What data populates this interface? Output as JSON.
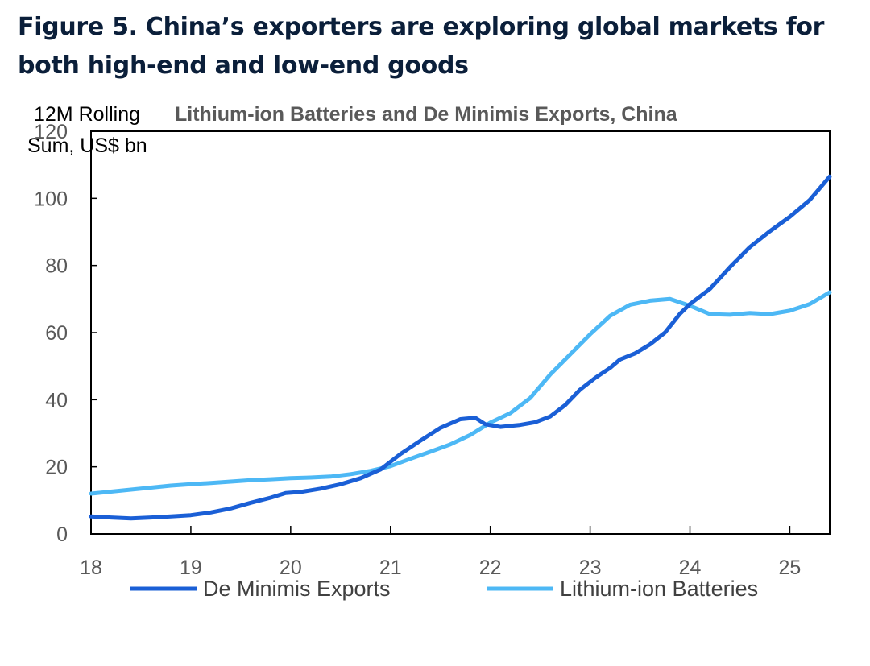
{
  "figure": {
    "title_line1": "Figure 5. China’s exporters are exploring global markets for",
    "title_line2": "both high-end and low-end goods"
  },
  "chart_data": {
    "type": "line",
    "title": "Lithium-ion Batteries and De Minimis Exports, China",
    "ylabel_line1": "12M Rolling",
    "ylabel_line2": "Sum, US$ bn",
    "xlabel": "",
    "xlim": [
      2018,
      2025.4
    ],
    "ylim": [
      0,
      120
    ],
    "x_ticks": [
      {
        "value": 2018,
        "label": "18"
      },
      {
        "value": 2019,
        "label": "19"
      },
      {
        "value": 2020,
        "label": "20"
      },
      {
        "value": 2021,
        "label": "21"
      },
      {
        "value": 2022,
        "label": "22"
      },
      {
        "value": 2023,
        "label": "23"
      },
      {
        "value": 2024,
        "label": "24"
      },
      {
        "value": 2025,
        "label": "25"
      }
    ],
    "y_ticks": [
      {
        "value": 0,
        "label": "0"
      },
      {
        "value": 20,
        "label": "20"
      },
      {
        "value": 40,
        "label": "40"
      },
      {
        "value": 60,
        "label": "60"
      },
      {
        "value": 80,
        "label": "80"
      },
      {
        "value": 100,
        "label": "100"
      },
      {
        "value": 120,
        "label": "120"
      }
    ],
    "grid": false,
    "legend_position": "bottom",
    "series": [
      {
        "name": "De Minimis Exports",
        "color": "#1a5fd6",
        "points": [
          [
            2018.0,
            5.2
          ],
          [
            2018.2,
            4.9
          ],
          [
            2018.4,
            4.6
          ],
          [
            2018.6,
            4.9
          ],
          [
            2018.8,
            5.2
          ],
          [
            2019.0,
            5.6
          ],
          [
            2019.2,
            6.4
          ],
          [
            2019.4,
            7.6
          ],
          [
            2019.6,
            9.3
          ],
          [
            2019.8,
            10.8
          ],
          [
            2019.95,
            12.2
          ],
          [
            2020.1,
            12.5
          ],
          [
            2020.3,
            13.5
          ],
          [
            2020.5,
            14.8
          ],
          [
            2020.7,
            16.6
          ],
          [
            2020.9,
            19.2
          ],
          [
            2021.1,
            23.8
          ],
          [
            2021.3,
            27.8
          ],
          [
            2021.5,
            31.6
          ],
          [
            2021.7,
            34.2
          ],
          [
            2021.85,
            34.6
          ],
          [
            2021.95,
            32.7
          ],
          [
            2022.1,
            31.9
          ],
          [
            2022.3,
            32.5
          ],
          [
            2022.45,
            33.3
          ],
          [
            2022.6,
            35.0
          ],
          [
            2022.75,
            38.4
          ],
          [
            2022.9,
            43.0
          ],
          [
            2023.05,
            46.5
          ],
          [
            2023.2,
            49.5
          ],
          [
            2023.3,
            52.0
          ],
          [
            2023.45,
            53.8
          ],
          [
            2023.6,
            56.5
          ],
          [
            2023.75,
            60.0
          ],
          [
            2023.9,
            65.6
          ],
          [
            2024.0,
            68.5
          ],
          [
            2024.2,
            73.0
          ],
          [
            2024.4,
            79.5
          ],
          [
            2024.6,
            85.5
          ],
          [
            2024.8,
            90.2
          ],
          [
            2025.0,
            94.5
          ],
          [
            2025.2,
            99.5
          ],
          [
            2025.4,
            106.5
          ]
        ]
      },
      {
        "name": "Lithium-ion Batteries",
        "color": "#4db8f5",
        "points": [
          [
            2018.0,
            12.0
          ],
          [
            2018.2,
            12.6
          ],
          [
            2018.4,
            13.2
          ],
          [
            2018.6,
            13.8
          ],
          [
            2018.8,
            14.4
          ],
          [
            2019.0,
            14.8
          ],
          [
            2019.2,
            15.2
          ],
          [
            2019.4,
            15.6
          ],
          [
            2019.6,
            16.0
          ],
          [
            2019.8,
            16.3
          ],
          [
            2020.0,
            16.6
          ],
          [
            2020.2,
            16.8
          ],
          [
            2020.4,
            17.1
          ],
          [
            2020.6,
            17.8
          ],
          [
            2020.8,
            18.8
          ],
          [
            2021.0,
            20.2
          ],
          [
            2021.2,
            22.4
          ],
          [
            2021.4,
            24.5
          ],
          [
            2021.6,
            26.7
          ],
          [
            2021.8,
            29.5
          ],
          [
            2022.0,
            33.2
          ],
          [
            2022.2,
            36.0
          ],
          [
            2022.4,
            40.5
          ],
          [
            2022.6,
            47.5
          ],
          [
            2022.8,
            53.5
          ],
          [
            2023.0,
            59.5
          ],
          [
            2023.2,
            65.0
          ],
          [
            2023.4,
            68.3
          ],
          [
            2023.6,
            69.5
          ],
          [
            2023.8,
            70.0
          ],
          [
            2024.0,
            68.0
          ],
          [
            2024.2,
            65.5
          ],
          [
            2024.4,
            65.3
          ],
          [
            2024.6,
            65.8
          ],
          [
            2024.8,
            65.5
          ],
          [
            2025.0,
            66.5
          ],
          [
            2025.2,
            68.5
          ],
          [
            2025.4,
            72.0
          ]
        ]
      }
    ]
  }
}
